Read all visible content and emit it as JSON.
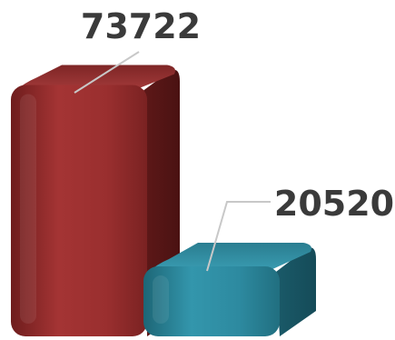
{
  "chart_data": {
    "type": "bar",
    "style": "3d-rounded",
    "categories": [
      "",
      ""
    ],
    "values": [
      73722,
      20520
    ],
    "data_labels": [
      "73722",
      "20520"
    ],
    "colors": [
      "#9a2e2e",
      "#2f8fa4"
    ],
    "ylim": [
      0,
      80000
    ],
    "grid": false,
    "legend": "none"
  }
}
